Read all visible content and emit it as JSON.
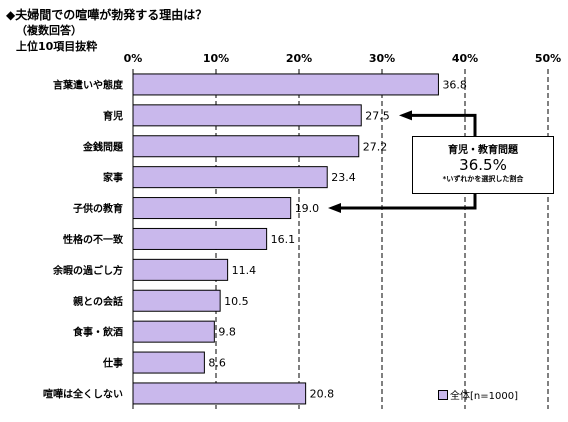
{
  "title": "◆夫婦間での喧嘩が勃発する理由は？",
  "subtitle": "（複数回答）",
  "caption": "上位10項目抜粋",
  "callout": {
    "line1": "育児・教育問題",
    "line2": "36.5%",
    "line3": "*いずれかを選択した割合"
  },
  "legend": {
    "label": "全体[n=1000]"
  },
  "colors": {
    "bar": "#c9b8ec",
    "stroke": "#000000"
  },
  "chart_data": {
    "type": "bar",
    "orientation": "horizontal",
    "categories": [
      "言葉遣いや態度",
      "育児",
      "金銭問題",
      "家事",
      "子供の教育",
      "性格の不一致",
      "余暇の過ごし方",
      "親との会話",
      "食事・飲酒",
      "仕事",
      "喧嘩は全くしない"
    ],
    "value_labels": [
      "36.8",
      "27.5",
      "27.2",
      "23.4",
      "19.0",
      "16.1",
      "11.4",
      "10.5",
      "9.8",
      "8.6",
      "20.8"
    ],
    "values": [
      36.8,
      27.5,
      27.2,
      23.4,
      19.0,
      16.1,
      11.4,
      10.5,
      9.8,
      8.6,
      20.8
    ],
    "series": [
      {
        "name": "全体[n=1000]",
        "values": [
          36.8,
          27.5,
          27.2,
          23.4,
          19.0,
          16.1,
          11.4,
          10.5,
          9.8,
          8.6,
          20.8
        ]
      }
    ],
    "xlim": [
      0,
      50
    ],
    "xticks": [
      "0%",
      "10%",
      "20%",
      "30%",
      "40%",
      "50%"
    ],
    "grid": "vertical dashed",
    "legend_position": "bottom-right"
  }
}
